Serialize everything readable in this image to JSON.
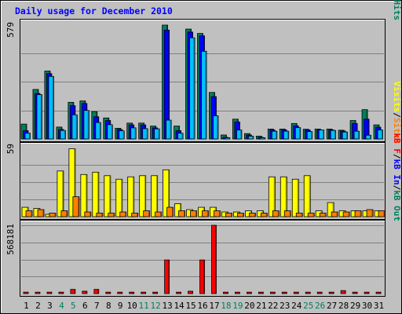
{
  "chart_data": {
    "type": "bar",
    "title": "Daily usage for December 2010",
    "colors": {
      "hits": "#00805c",
      "files": "#0000ff",
      "pages": "#00c0ff",
      "visits": "#ffff00",
      "sites": "#ff8000",
      "kb": "#ff0000",
      "background": "#c0c0c0",
      "title": "#0000ff",
      "weekend": "#00805c"
    },
    "days": [
      "1",
      "2",
      "3",
      "4",
      "5",
      "6",
      "7",
      "8",
      "9",
      "10",
      "11",
      "12",
      "13",
      "14",
      "15",
      "16",
      "17",
      "18",
      "19",
      "20",
      "21",
      "22",
      "23",
      "24",
      "25",
      "26",
      "27",
      "28",
      "29",
      "30",
      "31"
    ],
    "weekend_days": [
      "4",
      "5",
      "11",
      "12",
      "18",
      "19",
      "25",
      "26"
    ],
    "panels": [
      {
        "id": "hits-files-pages",
        "max_label": "579",
        "ymax": 579,
        "legend": [
          {
            "text": "Pages",
            "color": "#00c0ff"
          },
          {
            "text": "/",
            "color": "#000000"
          },
          {
            "text": "Files",
            "color": "#0000ff"
          },
          {
            "text": "/",
            "color": "#000000"
          },
          {
            "text": "Hits",
            "color": "#00805c"
          }
        ],
        "series": [
          {
            "name": "Hits",
            "color": "#00805c",
            "values": [
              75,
              250,
              343,
              60,
              185,
              192,
              138,
              106,
              54,
              80,
              80,
              65,
              575,
              65,
              555,
              533,
              235,
              20,
              100,
              27,
              14,
              50,
              50,
              78,
              49,
              50,
              50,
              44,
              93,
              148,
              71
            ]
          },
          {
            "name": "Files",
            "color": "#0000ff",
            "values": [
              42,
              230,
              330,
              48,
              168,
              179,
              112,
              93,
              48,
              71,
              71,
              56,
              550,
              42,
              540,
              521,
              214,
              8,
              86,
              20,
              8,
              45,
              45,
              66,
              45,
              45,
              45,
              40,
              78,
              100,
              59
            ]
          },
          {
            "name": "Pages",
            "color": "#00c0ff",
            "values": [
              29,
              224,
              316,
              43,
              122,
              144,
              83,
              72,
              41,
              56,
              52,
              51,
              95,
              29,
              511,
              443,
              117,
              6,
              45,
              14,
              6,
              39,
              39,
              57,
              37,
              45,
              43,
              35,
              39,
              19,
              45
            ]
          }
        ]
      },
      {
        "id": "visits-sites",
        "max_label": "59",
        "ymax": 59,
        "legend": [
          {
            "text": "Visits",
            "color": "#ffff00"
          },
          {
            "text": "/",
            "color": "#000000"
          },
          {
            "text": "Sites",
            "color": "#ff8000"
          }
        ],
        "series": [
          {
            "name": "Visits",
            "color": "#ffff00",
            "values": [
              8,
              7,
              2,
              39,
              58,
              36,
              38,
              35,
              32,
              34,
              35,
              35,
              40,
              11,
              6,
              8,
              8,
              4,
              4,
              5,
              5,
              34,
              34,
              32,
              35,
              5,
              12,
              5,
              5,
              5,
              5
            ]
          },
          {
            "name": "Sites",
            "color": "#ff8000",
            "values": [
              5,
              6,
              3,
              5,
              17,
              4,
              3,
              3,
              4,
              3,
              5,
              4,
              8,
              5,
              5,
              5,
              5,
              3,
              3,
              3,
              3,
              5,
              5,
              3,
              3,
              3,
              4,
              4,
              5,
              6,
              5
            ]
          }
        ]
      },
      {
        "id": "kbin-kbout-kbf",
        "max_label": "568181",
        "ymax": 568181,
        "legend": [
          {
            "text": "kB F",
            "color": "#ff0000"
          },
          {
            "text": "/",
            "color": "#000000"
          },
          {
            "text": "kB In",
            "color": "#0000ff"
          },
          {
            "text": "/",
            "color": "#000000"
          },
          {
            "text": "kB Out",
            "color": "#00805c"
          }
        ],
        "series": [
          {
            "name": "kB F",
            "color": "#ff0000",
            "values": [
              12000,
              12000,
              12000,
              12000,
              35000,
              20000,
              35000,
              12000,
              12000,
              12000,
              12000,
              12000,
              280000,
              12000,
              20000,
              280000,
              568181,
              12000,
              12000,
              12000,
              12000,
              12000,
              12000,
              12000,
              12000,
              12000,
              12000,
              25000,
              12000,
              12000,
              12000
            ]
          }
        ]
      }
    ]
  }
}
